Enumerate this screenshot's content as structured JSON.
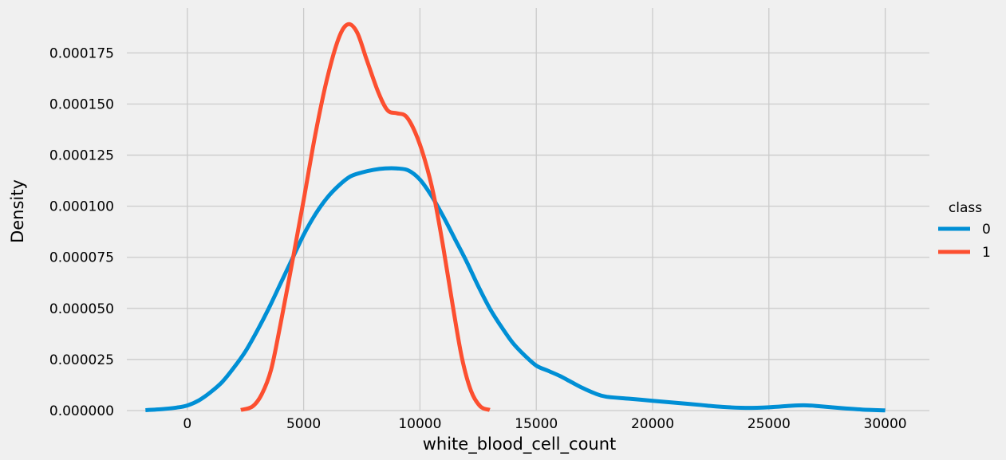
{
  "chart_data": {
    "type": "line",
    "title": "",
    "xlabel": "white_blood_cell_count",
    "ylabel": "Density",
    "xlim": [
      -2600,
      31900
    ],
    "ylim": [
      0,
      0.000197
    ],
    "grid": true,
    "x_ticks": [
      {
        "value": 0,
        "label": "0"
      },
      {
        "value": 5000,
        "label": "5000"
      },
      {
        "value": 10000,
        "label": "10000"
      },
      {
        "value": 15000,
        "label": "15000"
      },
      {
        "value": 20000,
        "label": "20000"
      },
      {
        "value": 25000,
        "label": "25000"
      },
      {
        "value": 30000,
        "label": "30000"
      }
    ],
    "y_ticks": [
      {
        "value": 0,
        "label": "0.000000"
      },
      {
        "value": 2.5e-05,
        "label": "0.000025"
      },
      {
        "value": 5e-05,
        "label": "0.000050"
      },
      {
        "value": 7.5e-05,
        "label": "0.000075"
      },
      {
        "value": 0.0001,
        "label": "0.000100"
      },
      {
        "value": 0.000125,
        "label": "0.000125"
      },
      {
        "value": 0.00015,
        "label": "0.000150"
      },
      {
        "value": 0.000175,
        "label": "0.000175"
      }
    ],
    "legend": {
      "title": "class",
      "placement": "right"
    },
    "series": [
      {
        "name": "0",
        "color": "#008fd5",
        "points": [
          [
            -1800,
            2e-07
          ],
          [
            -1000,
            8e-07
          ],
          [
            -500,
            1.4e-06
          ],
          [
            0,
            2.5e-06
          ],
          [
            500,
            5e-06
          ],
          [
            1000,
            9e-06
          ],
          [
            1500,
            1.4e-05
          ],
          [
            2000,
            2.1e-05
          ],
          [
            2500,
            2.9e-05
          ],
          [
            3000,
            3.9e-05
          ],
          [
            3500,
            5e-05
          ],
          [
            4000,
            6.2e-05
          ],
          [
            4500,
            7.4e-05
          ],
          [
            5000,
            8.6e-05
          ],
          [
            5500,
            9.6e-05
          ],
          [
            6000,
            0.000104
          ],
          [
            6500,
            0.00011
          ],
          [
            7000,
            0.0001145
          ],
          [
            7500,
            0.0001165
          ],
          [
            8000,
            0.0001178
          ],
          [
            8500,
            0.0001185
          ],
          [
            9000,
            0.0001185
          ],
          [
            9500,
            0.0001175
          ],
          [
            10000,
            0.000113
          ],
          [
            10500,
            0.000105
          ],
          [
            11000,
            9.5e-05
          ],
          [
            11500,
            8.4e-05
          ],
          [
            12000,
            7.3e-05
          ],
          [
            12500,
            6.1e-05
          ],
          [
            13000,
            5e-05
          ],
          [
            13500,
            4.1e-05
          ],
          [
            14000,
            3.3e-05
          ],
          [
            14500,
            2.7e-05
          ],
          [
            15000,
            2.2e-05
          ],
          [
            15500,
            1.95e-05
          ],
          [
            16000,
            1.7e-05
          ],
          [
            16500,
            1.4e-05
          ],
          [
            17000,
            1.1e-05
          ],
          [
            17500,
            8.5e-06
          ],
          [
            18000,
            6.8e-06
          ],
          [
            19000,
            5.8e-06
          ],
          [
            20000,
            4.8e-06
          ],
          [
            21000,
            3.8e-06
          ],
          [
            22000,
            2.8e-06
          ],
          [
            23000,
            1.8e-06
          ],
          [
            24000,
            1.3e-06
          ],
          [
            25000,
            1.6e-06
          ],
          [
            26000,
            2.4e-06
          ],
          [
            26500,
            2.6e-06
          ],
          [
            27000,
            2.3e-06
          ],
          [
            28000,
            1.3e-06
          ],
          [
            29000,
            5e-07
          ],
          [
            30000,
            1e-07
          ]
        ]
      },
      {
        "name": "1",
        "color": "#fc4f30",
        "points": [
          [
            2300,
            3e-07
          ],
          [
            2800,
            2e-06
          ],
          [
            3200,
            8e-06
          ],
          [
            3600,
            2e-05
          ],
          [
            4000,
            4.2e-05
          ],
          [
            4500,
            7.2e-05
          ],
          [
            5000,
            0.000103
          ],
          [
            5500,
            0.000135
          ],
          [
            6000,
            0.000162
          ],
          [
            6500,
            0.000182
          ],
          [
            6900,
            0.000189
          ],
          [
            7300,
            0.000185
          ],
          [
            7700,
            0.000172
          ],
          [
            8200,
            0.000156
          ],
          [
            8600,
            0.000147
          ],
          [
            9000,
            0.0001455
          ],
          [
            9400,
            0.000144
          ],
          [
            9800,
            0.000136
          ],
          [
            10200,
            0.000123
          ],
          [
            10600,
            0.000105
          ],
          [
            11000,
            8e-05
          ],
          [
            11400,
            5.2e-05
          ],
          [
            11800,
            2.6e-05
          ],
          [
            12200,
            9.5e-06
          ],
          [
            12600,
            2e-06
          ],
          [
            13000,
            3e-07
          ]
        ]
      }
    ]
  }
}
